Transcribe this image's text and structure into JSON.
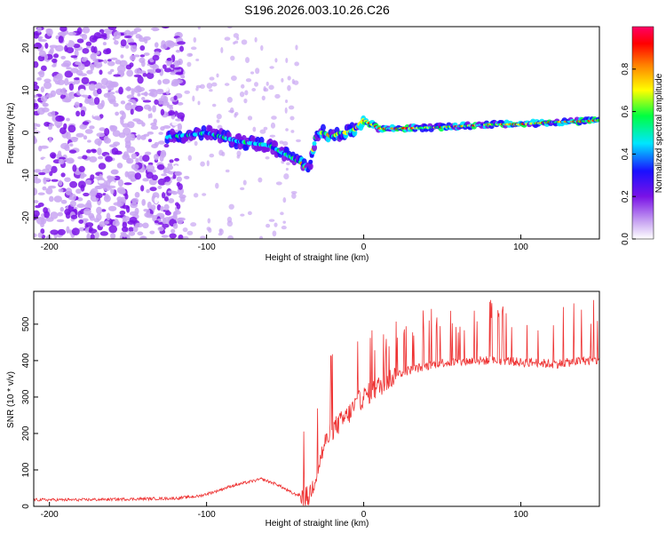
{
  "figure_title": "S196.2026.003.10.26.C26",
  "chart_data": [
    {
      "type": "heatmap",
      "title": "S196.2026.003.10.26.C26",
      "xlabel": "Height of straight line (km)",
      "ylabel": "Frequency (Hz)",
      "xlim": [
        -210,
        150
      ],
      "ylim": [
        -25,
        25
      ],
      "xticks": [
        -200,
        -100,
        0,
        100
      ],
      "yticks": [
        -20,
        -10,
        0,
        10,
        20
      ],
      "colorbar": {
        "label": "Normalized spectral amplitude",
        "range": [
          0.0,
          1.0
        ],
        "ticks": [
          0.0,
          0.2,
          0.4,
          0.6,
          0.8
        ],
        "tick_labels": [
          "0.0",
          "0.2",
          "0.4",
          "0.6",
          "0.8"
        ],
        "colormap": [
          "#ffffff",
          "#c9a6f2",
          "#7a12e6",
          "#1a10ff",
          "#00e6ff",
          "#00ff40",
          "#ffff00",
          "#ff8000",
          "#ff0000",
          "#ff0066"
        ]
      },
      "ridge": {
        "x": [
          -125,
          -110,
          -100,
          -90,
          -80,
          -70,
          -60,
          -50,
          -40,
          -35,
          -30,
          -25,
          -20,
          -15,
          -10,
          -5,
          0,
          10,
          20,
          40,
          60,
          80,
          100,
          120,
          140,
          150
        ],
        "frequency": [
          -1,
          -0.5,
          0,
          -1,
          -2,
          -2.5,
          -3,
          -5,
          -7,
          -9,
          0,
          0,
          -1,
          0,
          0,
          1,
          3,
          1,
          1,
          1.2,
          1.5,
          2,
          2,
          2.5,
          2.7,
          3
        ]
      }
    },
    {
      "type": "line",
      "xlabel": "Height of straight line (km)",
      "ylabel": "SNR (10 * v/v)",
      "xlim": [
        -210,
        150
      ],
      "ylim": [
        0,
        590
      ],
      "xticks": [
        -200,
        -100,
        0,
        100
      ],
      "yticks": [
        0,
        100,
        200,
        300,
        400,
        500
      ],
      "color": "#ee3333",
      "series": [
        {
          "name": "SNR",
          "x": [
            -210,
            -180,
            -150,
            -120,
            -105,
            -95,
            -85,
            -75,
            -65,
            -55,
            -45,
            -35,
            -30,
            -25,
            -20,
            -15,
            -10,
            -5,
            0,
            10,
            20,
            30,
            40,
            50,
            60,
            70,
            80,
            90,
            100,
            110,
            120,
            130,
            140,
            150
          ],
          "y": [
            18,
            18,
            20,
            22,
            28,
            40,
            55,
            65,
            75,
            60,
            35,
            25,
            90,
            170,
            210,
            230,
            250,
            280,
            300,
            330,
            360,
            375,
            385,
            395,
            395,
            400,
            400,
            400,
            395,
            395,
            390,
            395,
            400,
            400
          ]
        }
      ]
    }
  ]
}
